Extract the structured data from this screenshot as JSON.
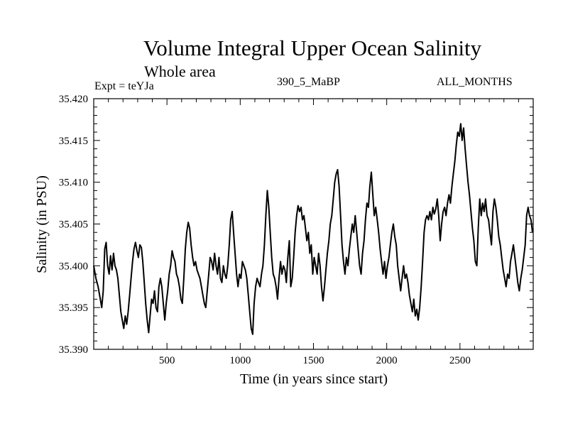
{
  "chart_data": {
    "type": "line",
    "title": "Volume Integral Upper Ocean Salinity",
    "subtitle": "Whole area",
    "annotations": {
      "experiment": "Expt = teYJa",
      "run": "390_5_MaBP",
      "months": "ALL_MONTHS"
    },
    "xlabel": "Time (in years since start)",
    "ylabel": "Salinity (in PSU)",
    "xlim": [
      0,
      3000
    ],
    "ylim": [
      35.39,
      35.42
    ],
    "xticks": [
      500,
      1000,
      1500,
      2000,
      2500
    ],
    "xtick_labels": [
      "500",
      "1000",
      "1500",
      "2000",
      "2500"
    ],
    "x_minor_step": 100,
    "yticks": [
      35.39,
      35.395,
      35.4,
      35.405,
      35.41,
      35.415,
      35.42
    ],
    "ytick_labels": [
      "35.390",
      "35.395",
      "35.400",
      "35.405",
      "35.410",
      "35.415",
      "35.420"
    ],
    "y_minor_step": 0.001,
    "grid": false,
    "series": [
      {
        "name": "salinity",
        "color": "#000000",
        "points": [
          [
            0,
            35.4
          ],
          [
            15,
            35.3985
          ],
          [
            30,
            35.3975
          ],
          [
            45,
            35.396
          ],
          [
            55,
            35.395
          ],
          [
            65,
            35.397
          ],
          [
            75,
            35.402
          ],
          [
            85,
            35.4028
          ],
          [
            95,
            35.4
          ],
          [
            105,
            35.399
          ],
          [
            115,
            35.4012
          ],
          [
            125,
            35.3995
          ],
          [
            135,
            35.4015
          ],
          [
            145,
            35.4
          ],
          [
            155,
            35.3995
          ],
          [
            165,
            35.3985
          ],
          [
            175,
            35.3965
          ],
          [
            185,
            35.3945
          ],
          [
            195,
            35.3935
          ],
          [
            205,
            35.3925
          ],
          [
            215,
            35.394
          ],
          [
            225,
            35.393
          ],
          [
            235,
            35.3945
          ],
          [
            245,
            35.3965
          ],
          [
            255,
            35.3985
          ],
          [
            265,
            35.4005
          ],
          [
            275,
            35.402
          ],
          [
            285,
            35.4028
          ],
          [
            295,
            35.4018
          ],
          [
            305,
            35.401
          ],
          [
            315,
            35.4025
          ],
          [
            325,
            35.4022
          ],
          [
            335,
            35.4005
          ],
          [
            345,
            35.398
          ],
          [
            355,
            35.3955
          ],
          [
            365,
            35.3935
          ],
          [
            375,
            35.392
          ],
          [
            385,
            35.394
          ],
          [
            395,
            35.396
          ],
          [
            405,
            35.3955
          ],
          [
            415,
            35.397
          ],
          [
            425,
            35.395
          ],
          [
            435,
            35.3945
          ],
          [
            445,
            35.3975
          ],
          [
            455,
            35.3985
          ],
          [
            465,
            35.3975
          ],
          [
            475,
            35.3955
          ],
          [
            485,
            35.3935
          ],
          [
            495,
            35.3955
          ],
          [
            505,
            35.397
          ],
          [
            515,
            35.399
          ],
          [
            525,
            35.4
          ],
          [
            535,
            35.4018
          ],
          [
            545,
            35.401
          ],
          [
            555,
            35.4005
          ],
          [
            565,
            35.399
          ],
          [
            575,
            35.3985
          ],
          [
            585,
            35.3975
          ],
          [
            595,
            35.396
          ],
          [
            605,
            35.3955
          ],
          [
            615,
            35.3985
          ],
          [
            625,
            35.402
          ],
          [
            635,
            35.404
          ],
          [
            645,
            35.4052
          ],
          [
            655,
            35.4045
          ],
          [
            665,
            35.4025
          ],
          [
            675,
            35.401
          ],
          [
            685,
            35.4
          ],
          [
            695,
            35.4005
          ],
          [
            705,
            35.3995
          ],
          [
            715,
            35.399
          ],
          [
            725,
            35.3985
          ],
          [
            735,
            35.3975
          ],
          [
            745,
            35.3965
          ],
          [
            755,
            35.3955
          ],
          [
            765,
            35.395
          ],
          [
            775,
            35.397
          ],
          [
            785,
            35.399
          ],
          [
            795,
            35.401
          ],
          [
            805,
            35.4005
          ],
          [
            815,
            35.3995
          ],
          [
            825,
            35.4015
          ],
          [
            835,
            35.4
          ],
          [
            845,
            35.399
          ],
          [
            855,
            35.401
          ],
          [
            865,
            35.3985
          ],
          [
            875,
            35.398
          ],
          [
            885,
            35.4
          ],
          [
            895,
            35.399
          ],
          [
            905,
            35.3985
          ],
          [
            915,
            35.4
          ],
          [
            925,
            35.4025
          ],
          [
            935,
            35.4055
          ],
          [
            945,
            35.4065
          ],
          [
            955,
            35.404
          ],
          [
            965,
            35.4015
          ],
          [
            975,
            35.399
          ],
          [
            985,
            35.3975
          ],
          [
            995,
            35.399
          ],
          [
            1005,
            35.3985
          ],
          [
            1015,
            35.4005
          ],
          [
            1025,
            35.4
          ],
          [
            1035,
            35.3995
          ],
          [
            1045,
            35.3985
          ],
          [
            1055,
            35.3965
          ],
          [
            1065,
            35.3945
          ],
          [
            1075,
            35.3925
          ],
          [
            1085,
            35.3918
          ],
          [
            1095,
            35.3955
          ],
          [
            1105,
            35.3975
          ],
          [
            1115,
            35.3985
          ],
          [
            1125,
            35.398
          ],
          [
            1135,
            35.3975
          ],
          [
            1145,
            35.399
          ],
          [
            1155,
            35.4
          ],
          [
            1165,
            35.4025
          ],
          [
            1175,
            35.406
          ],
          [
            1185,
            35.409
          ],
          [
            1195,
            35.407
          ],
          [
            1205,
            35.404
          ],
          [
            1215,
            35.401
          ],
          [
            1225,
            35.399
          ],
          [
            1235,
            35.3985
          ],
          [
            1245,
            35.3975
          ],
          [
            1255,
            35.396
          ],
          [
            1265,
            35.3985
          ],
          [
            1275,
            35.4005
          ],
          [
            1285,
            35.399
          ],
          [
            1295,
            35.4
          ],
          [
            1305,
            35.3995
          ],
          [
            1315,
            35.398
          ],
          [
            1325,
            35.401
          ],
          [
            1335,
            35.403
          ],
          [
            1345,
            35.3975
          ],
          [
            1355,
            35.3985
          ],
          [
            1365,
            35.401
          ],
          [
            1375,
            35.404
          ],
          [
            1385,
            35.406
          ],
          [
            1395,
            35.4072
          ],
          [
            1405,
            35.4065
          ],
          [
            1415,
            35.407
          ],
          [
            1425,
            35.4055
          ],
          [
            1435,
            35.406
          ],
          [
            1445,
            35.4045
          ],
          [
            1455,
            35.403
          ],
          [
            1465,
            35.404
          ],
          [
            1475,
            35.4015
          ],
          [
            1485,
            35.4025
          ],
          [
            1495,
            35.399
          ],
          [
            1505,
            35.401
          ],
          [
            1515,
            35.4
          ],
          [
            1525,
            35.399
          ],
          [
            1535,
            35.4015
          ],
          [
            1545,
            35.4
          ],
          [
            1555,
            35.3975
          ],
          [
            1565,
            35.3958
          ],
          [
            1575,
            35.3975
          ],
          [
            1585,
            35.3995
          ],
          [
            1595,
            35.4015
          ],
          [
            1605,
            35.403
          ],
          [
            1615,
            35.405
          ],
          [
            1625,
            35.406
          ],
          [
            1635,
            35.408
          ],
          [
            1645,
            35.41
          ],
          [
            1655,
            35.411
          ],
          [
            1665,
            35.4115
          ],
          [
            1675,
            35.4095
          ],
          [
            1685,
            35.406
          ],
          [
            1695,
            35.4025
          ],
          [
            1705,
            35.4005
          ],
          [
            1715,
            35.399
          ],
          [
            1725,
            35.401
          ],
          [
            1735,
            35.4
          ],
          [
            1745,
            35.402
          ],
          [
            1755,
            35.4035
          ],
          [
            1765,
            35.405
          ],
          [
            1775,
            35.404
          ],
          [
            1785,
            35.406
          ],
          [
            1795,
            35.404
          ],
          [
            1805,
            35.402
          ],
          [
            1815,
            35.4
          ],
          [
            1825,
            35.399
          ],
          [
            1835,
            35.4015
          ],
          [
            1845,
            35.403
          ],
          [
            1855,
            35.4055
          ],
          [
            1865,
            35.4075
          ],
          [
            1875,
            35.407
          ],
          [
            1885,
            35.4095
          ],
          [
            1895,
            35.4112
          ],
          [
            1905,
            35.4085
          ],
          [
            1915,
            35.406
          ],
          [
            1925,
            35.407
          ],
          [
            1935,
            35.4055
          ],
          [
            1945,
            35.404
          ],
          [
            1955,
            35.402
          ],
          [
            1965,
            35.4005
          ],
          [
            1975,
            35.399
          ],
          [
            1985,
            35.4005
          ],
          [
            1995,
            35.3985
          ],
          [
            2005,
            35.4
          ],
          [
            2015,
            35.401
          ],
          [
            2025,
            35.4025
          ],
          [
            2035,
            35.404
          ],
          [
            2045,
            35.405
          ],
          [
            2055,
            35.4035
          ],
          [
            2065,
            35.4025
          ],
          [
            2075,
            35.4
          ],
          [
            2085,
            35.3985
          ],
          [
            2095,
            35.397
          ],
          [
            2105,
            35.3985
          ],
          [
            2115,
            35.4
          ],
          [
            2125,
            35.3985
          ],
          [
            2135,
            35.399
          ],
          [
            2145,
            35.398
          ],
          [
            2155,
            35.3965
          ],
          [
            2165,
            35.3955
          ],
          [
            2175,
            35.3945
          ],
          [
            2185,
            35.396
          ],
          [
            2195,
            35.394
          ],
          [
            2205,
            35.3948
          ],
          [
            2215,
            35.3935
          ],
          [
            2225,
            35.395
          ],
          [
            2235,
            35.3975
          ],
          [
            2245,
            35.4005
          ],
          [
            2255,
            35.404
          ],
          [
            2265,
            35.4055
          ],
          [
            2275,
            35.406
          ],
          [
            2285,
            35.4055
          ],
          [
            2295,
            35.4065
          ],
          [
            2305,
            35.4055
          ],
          [
            2315,
            35.407
          ],
          [
            2325,
            35.4062
          ],
          [
            2335,
            35.4068
          ],
          [
            2345,
            35.408
          ],
          [
            2355,
            35.406
          ],
          [
            2365,
            35.403
          ],
          [
            2375,
            35.405
          ],
          [
            2385,
            35.4065
          ],
          [
            2395,
            35.407
          ],
          [
            2405,
            35.406
          ],
          [
            2415,
            35.4075
          ],
          [
            2425,
            35.4085
          ],
          [
            2435,
            35.4075
          ],
          [
            2445,
            35.4095
          ],
          [
            2455,
            35.411
          ],
          [
            2465,
            35.4125
          ],
          [
            2475,
            35.4145
          ],
          [
            2485,
            35.416
          ],
          [
            2495,
            35.4155
          ],
          [
            2505,
            35.417
          ],
          [
            2515,
            35.415
          ],
          [
            2525,
            35.4165
          ],
          [
            2535,
            35.414
          ],
          [
            2545,
            35.412
          ],
          [
            2555,
            35.41
          ],
          [
            2565,
            35.4085
          ],
          [
            2575,
            35.4065
          ],
          [
            2585,
            35.4045
          ],
          [
            2595,
            35.403
          ],
          [
            2605,
            35.4005
          ],
          [
            2615,
            35.4
          ],
          [
            2625,
            35.4045
          ],
          [
            2635,
            35.408
          ],
          [
            2645,
            35.406
          ],
          [
            2655,
            35.4075
          ],
          [
            2665,
            35.4065
          ],
          [
            2675,
            35.408
          ],
          [
            2685,
            35.406
          ],
          [
            2695,
            35.4055
          ],
          [
            2705,
            35.404
          ],
          [
            2715,
            35.4025
          ],
          [
            2725,
            35.4065
          ],
          [
            2735,
            35.408
          ],
          [
            2745,
            35.407
          ],
          [
            2755,
            35.4055
          ],
          [
            2765,
            35.4035
          ],
          [
            2775,
            35.4025
          ],
          [
            2785,
            35.401
          ],
          [
            2795,
            35.3995
          ],
          [
            2805,
            35.3985
          ],
          [
            2815,
            35.3975
          ],
          [
            2825,
            35.399
          ],
          [
            2835,
            35.3985
          ],
          [
            2845,
            35.4005
          ],
          [
            2855,
            35.4015
          ],
          [
            2865,
            35.4025
          ],
          [
            2875,
            35.401
          ],
          [
            2885,
            35.3995
          ],
          [
            2895,
            35.398
          ],
          [
            2905,
            35.397
          ],
          [
            2915,
            35.3985
          ],
          [
            2925,
            35.3995
          ],
          [
            2935,
            35.401
          ],
          [
            2945,
            35.4025
          ],
          [
            2955,
            35.406
          ],
          [
            2965,
            35.407
          ],
          [
            2975,
            35.406
          ],
          [
            2985,
            35.4055
          ],
          [
            2995,
            35.404
          ]
        ]
      }
    ]
  }
}
